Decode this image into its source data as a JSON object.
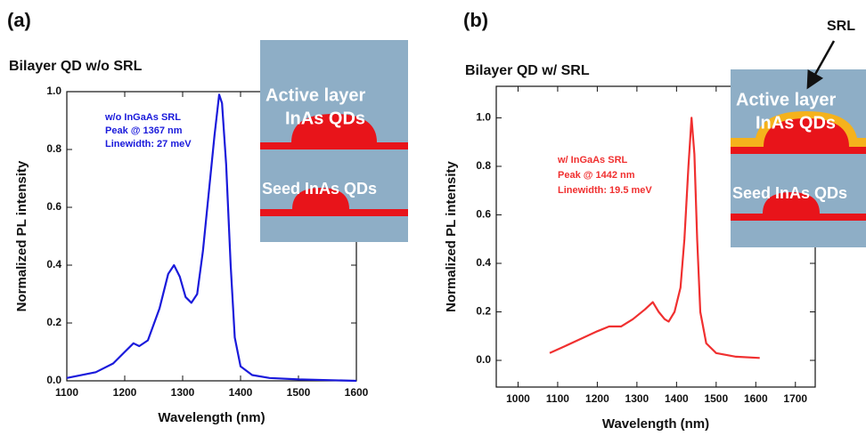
{
  "chart_data": [
    {
      "type": "line",
      "panel_label": "(a)",
      "title": "Bilayer QD w/o SRL",
      "xlabel": "Wavelength (nm)",
      "ylabel": "Normalized PL intensity",
      "x": [
        1100,
        1150,
        1180,
        1200,
        1215,
        1225,
        1240,
        1260,
        1275,
        1285,
        1295,
        1305,
        1315,
        1325,
        1335,
        1345,
        1355,
        1363,
        1368,
        1375,
        1383,
        1390,
        1400,
        1420,
        1450,
        1500,
        1600
      ],
      "values": [
        0.01,
        0.03,
        0.06,
        0.1,
        0.13,
        0.12,
        0.14,
        0.25,
        0.37,
        0.4,
        0.36,
        0.29,
        0.27,
        0.3,
        0.45,
        0.65,
        0.85,
        0.99,
        0.96,
        0.75,
        0.4,
        0.15,
        0.05,
        0.02,
        0.01,
        0.005,
        0.0
      ],
      "color": "#1a1adb",
      "xlim": [
        1100,
        1600
      ],
      "xticks": [
        1100,
        1200,
        1300,
        1400,
        1500,
        1600
      ],
      "ylim": [
        0,
        1
      ],
      "yticks": [
        {
          "value": 0,
          "label": "0.0"
        },
        0.2,
        0.4,
        0.6,
        0.8,
        {
          "value": 1,
          "label": "1.0"
        }
      ],
      "annotation": [
        "w/o InGaAs SRL",
        "Peak @ 1367 nm",
        "Linewidth: 27 meV"
      ],
      "inset": [
        "Active layer",
        "InAs QDs",
        "Seed InAs QDs"
      ]
    },
    {
      "type": "line",
      "panel_label": "(b)",
      "title": "Bilayer QD w/ SRL",
      "xlabel": "Wavelength (nm)",
      "ylabel": "Normalized PL intensity",
      "x": [
        1080,
        1120,
        1160,
        1200,
        1230,
        1260,
        1290,
        1320,
        1340,
        1355,
        1370,
        1380,
        1395,
        1410,
        1420,
        1430,
        1438,
        1445,
        1452,
        1460,
        1475,
        1500,
        1550,
        1610
      ],
      "values": [
        0.03,
        0.06,
        0.09,
        0.12,
        0.14,
        0.14,
        0.17,
        0.21,
        0.24,
        0.2,
        0.17,
        0.16,
        0.2,
        0.3,
        0.5,
        0.8,
        1.0,
        0.85,
        0.5,
        0.2,
        0.07,
        0.03,
        0.015,
        0.01
      ],
      "color": "#f03030",
      "xlim": [
        945,
        1750
      ],
      "xticks": [
        1000,
        1100,
        1200,
        1300,
        1400,
        1500,
        1600,
        1700
      ],
      "ylim": [
        -0.11,
        1.13
      ],
      "yticks": [
        {
          "value": 0,
          "label": "0.0"
        },
        0.2,
        0.4,
        0.6,
        0.8,
        {
          "value": 1,
          "label": "1.0"
        }
      ],
      "annotation": [
        "w/ InGaAs SRL",
        "Peak @ 1442 nm",
        "Linewidth: 19.5 meV"
      ],
      "inset": [
        "Active layer",
        "InAs QDs",
        "Seed InAs QDs"
      ],
      "srl_label": "SRL"
    }
  ]
}
